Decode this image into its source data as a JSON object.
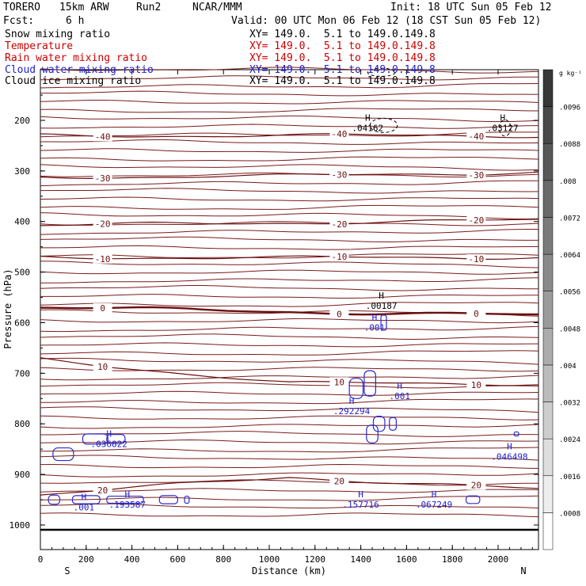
{
  "header": {
    "model": "TORERO",
    "resolution": "15km ARW",
    "run": "Run2",
    "org": "NCAR/MMM",
    "init": "Init: 18 UTC Sun 05 Feb 12",
    "fcst_label": "Fcst:",
    "fcst_value": "6 h",
    "valid": "Valid: 00 UTC Mon 06 Feb 12 (18 CST Sun 05 Feb 12)"
  },
  "fields": [
    {
      "name": "Snow mixing ratio",
      "xy": "XY= 149.0.  5.1 to 149.0.149.8",
      "color": "#000000"
    },
    {
      "name": "Temperature",
      "xy": "XY= 149.0.  5.1 to 149.0.149.8",
      "color": "#cc0000"
    },
    {
      "name": "Rain water mixing ratio",
      "xy": "XY= 149.0.  5.1 to 149.0.149.8",
      "color": "#cc0000"
    },
    {
      "name": "Cloud water mixing ratio",
      "xy": "XY= 149.0.  5.1 to 149.0.149.8",
      "color": "#2222cc"
    },
    {
      "name": "Cloud ice mixing ratio",
      "xy": "XY= 149.0.  5.1 to 149.0.149.8",
      "color": "#000000"
    }
  ],
  "chart_data": {
    "type": "cross-section contour",
    "xlabel": "Distance (km)",
    "ylabel": "Pressure (hPa)",
    "xlim": [
      0,
      2180
    ],
    "ylim": [
      1050,
      100
    ],
    "x_ticks": [
      0,
      200,
      400,
      600,
      800,
      1000,
      1200,
      1400,
      1600,
      1800,
      2000
    ],
    "y_ticks": [
      200,
      300,
      400,
      500,
      600,
      700,
      800,
      900,
      1000
    ],
    "left_end": "S",
    "right_end": "N",
    "colorbar": {
      "unit": "g kg⁻¹",
      "ticks": [
        ".0008",
        ".0016",
        ".0024",
        ".0032",
        ".004",
        ".0048",
        ".0056",
        ".0064",
        ".0072",
        ".008",
        ".0088",
        ".0096"
      ]
    },
    "temperature_isotherms": [
      {
        "label": "-30",
        "p_left": 312,
        "p_mid": 310,
        "p_right": 302
      },
      {
        "label": "-20",
        "p_left": 408,
        "p_mid": 402,
        "p_right": 398
      },
      {
        "label": "-10",
        "p_left": 470,
        "p_mid": 472,
        "p_right": 470
      },
      {
        "label": "0",
        "p_left": 570,
        "p_mid": 578,
        "p_right": 586
      },
      {
        "label": "10",
        "p_left": 672,
        "p_mid": 720,
        "p_right": 720
      },
      {
        "label": "20",
        "p_left": 940,
        "p_mid": 905,
        "p_right": 930
      },
      {
        "label": "-40",
        "p_left": 230,
        "p_mid": 230,
        "p_right": 230
      }
    ],
    "max_labels": [
      {
        "field": "snow",
        "text": ".04162",
        "x_km": 1430,
        "p": 210
      },
      {
        "field": "snow",
        "text": ".03127",
        "x_km": 2020,
        "p": 210
      },
      {
        "field": "snow",
        "text": ".00187",
        "x_km": 1490,
        "p": 562
      },
      {
        "field": "cloud water",
        "text": ".001",
        "x_km": 1460,
        "p": 605
      },
      {
        "field": "cloud water",
        "text": ".292294",
        "x_km": 1360,
        "p": 770
      },
      {
        "field": "cloud water",
        "text": ".001",
        "x_km": 1570,
        "p": 740
      },
      {
        "field": "cloud water",
        "text": ".036822",
        "x_km": 300,
        "p": 835
      },
      {
        "field": "cloud water",
        "text": ".046498",
        "x_km": 2050,
        "p": 860
      },
      {
        "field": "cloud water",
        "text": ".001",
        "x_km": 190,
        "p": 960
      },
      {
        "field": "cloud water",
        "text": ".193587",
        "x_km": 380,
        "p": 955
      },
      {
        "field": "cloud water",
        "text": ".157716",
        "x_km": 1400,
        "p": 955
      },
      {
        "field": "cloud water",
        "text": ".067249",
        "x_km": 1720,
        "p": 955
      }
    ]
  }
}
